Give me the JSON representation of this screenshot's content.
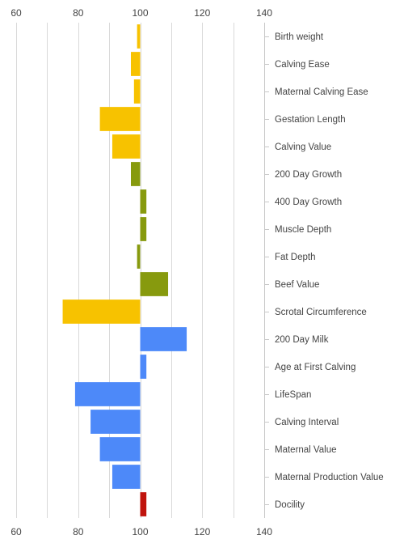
{
  "chart_data": {
    "type": "bar",
    "orientation": "horizontal",
    "baseline": 100,
    "xlim": [
      60,
      140
    ],
    "xticks": [
      60,
      80,
      100,
      120,
      140
    ],
    "xtick_labels": [
      "60",
      "80",
      "100",
      "120",
      "140"
    ],
    "grid": true,
    "categories": [
      "Birth weight",
      "Calving Ease",
      "Maternal Calving Ease",
      "Gestation Length",
      "Calving Value",
      "200 Day Growth",
      "400 Day Growth",
      "Muscle Depth",
      "Fat Depth",
      "Beef Value",
      "Scrotal Circumference",
      "200 Day Milk",
      "Age at First Calving",
      "LifeSpan",
      "Calving Interval",
      "Maternal Value",
      "Maternal Production Value",
      "Docility"
    ],
    "values": [
      99,
      97,
      98,
      87,
      91,
      97,
      102,
      102,
      99,
      109,
      75,
      115,
      102,
      79,
      84,
      87,
      91,
      102
    ],
    "colors": [
      "#f7c200",
      "#f7c200",
      "#f7c200",
      "#f7c200",
      "#f7c200",
      "#879a0e",
      "#879a0e",
      "#879a0e",
      "#879a0e",
      "#879a0e",
      "#f7c200",
      "#4d89f9",
      "#4d89f9",
      "#4d89f9",
      "#4d89f9",
      "#4d89f9",
      "#4d89f9",
      "#c0140d"
    ]
  },
  "style": {
    "grid_color": "#d9d9d9",
    "axis_color": "#c8c8c8",
    "text_color": "#444444"
  }
}
